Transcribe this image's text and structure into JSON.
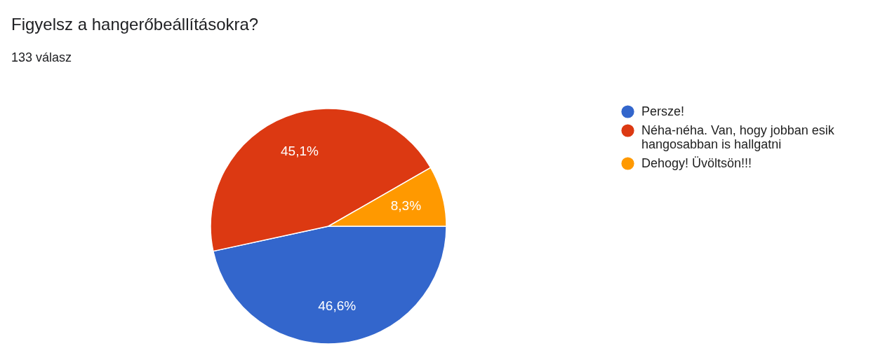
{
  "chart_data": {
    "type": "pie",
    "title": "Figyelsz a hangerőbeállításokra?",
    "subtitle": "133 válasz",
    "categories": [
      "Persze!",
      "Néha-néha. Van, hogy jobban esik hangosabban is hallgatni",
      "Dehogy! Üvöltsön!!!"
    ],
    "values": [
      46.6,
      45.1,
      8.3
    ],
    "colors": [
      "#3366cc",
      "#dc3912",
      "#ff9900"
    ],
    "value_labels": [
      "46,6%",
      "45,1%",
      "8,3%"
    ],
    "legend": "right"
  }
}
